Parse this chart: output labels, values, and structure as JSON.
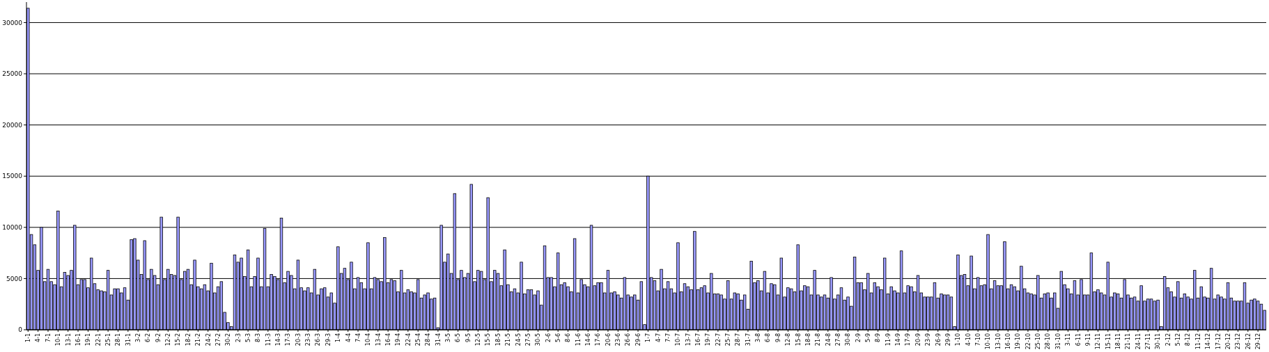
{
  "chart_data": {
    "type": "bar",
    "categories": [
      "1-1",
      null,
      null,
      "4-1",
      null,
      null,
      "7-1",
      null,
      null,
      "10-1",
      null,
      null,
      "13-1",
      null,
      null,
      "16-1",
      null,
      null,
      "19-1",
      null,
      null,
      "22-1",
      null,
      null,
      "25-1",
      null,
      null,
      "28-1",
      null,
      null,
      "31-1",
      null,
      null,
      "3-2",
      null,
      null,
      "6-2",
      null,
      null,
      "9-2",
      null,
      null,
      "12-2",
      null,
      null,
      "15-2",
      null,
      null,
      "18-2",
      null,
      null,
      "21-2",
      null,
      null,
      "24-2",
      null,
      null,
      "27-2",
      null,
      null,
      "30-2",
      null,
      null,
      "2-3",
      null,
      null,
      "5-3",
      null,
      null,
      "8-3",
      null,
      null,
      "11-3",
      null,
      null,
      "14-3",
      null,
      null,
      "17-3",
      null,
      null,
      "20-3",
      null,
      null,
      "23-3",
      null,
      null,
      "26-3",
      null,
      null,
      "29-3",
      null,
      null,
      "1-4",
      null,
      null,
      "4-4",
      null,
      null,
      "7-4",
      null,
      null,
      "10-4",
      null,
      null,
      "13-4",
      null,
      null,
      "16-4",
      null,
      null,
      "19-4",
      null,
      null,
      "22-4",
      null,
      null,
      "25-4",
      null,
      null,
      "28-4",
      null,
      null,
      "31-4",
      null,
      null,
      "3-5",
      null,
      null,
      "6-5",
      null,
      null,
      "9-5",
      null,
      null,
      "12-5",
      null,
      null,
      "15-5",
      null,
      null,
      "18-5",
      null,
      null,
      "21-5",
      null,
      null,
      "24-5",
      null,
      null,
      "27-5",
      null,
      null,
      "30-5",
      null,
      null,
      "2-6",
      null,
      null,
      "5-6",
      null,
      null,
      "8-6",
      null,
      null,
      "11-6",
      null,
      null,
      "14-6",
      null,
      null,
      "17-6",
      null,
      null,
      "20-6",
      null,
      null,
      "23-6",
      null,
      null,
      "26-6",
      null,
      null,
      "29-6",
      null,
      null,
      "1-7",
      null,
      null,
      "4-7",
      null,
      null,
      "7-7",
      null,
      null,
      "10-7",
      null,
      null,
      "13-7",
      null,
      null,
      "16-7",
      null,
      null,
      "19-7",
      null,
      null,
      "22-7",
      null,
      null,
      "25-7",
      null,
      null,
      "28-7",
      null,
      null,
      "31-7",
      null,
      null,
      "3-8",
      null,
      null,
      "6-8",
      null,
      null,
      "9-8",
      null,
      null,
      "12-8",
      null,
      null,
      "15-8",
      null,
      null,
      "18-8",
      null,
      null,
      "21-8",
      null,
      null,
      "24-8",
      null,
      null,
      "27-8",
      null,
      null,
      "30-8",
      null,
      null,
      "2-9",
      null,
      null,
      "5-9",
      null,
      null,
      "8-9",
      null,
      null,
      "11-9",
      null,
      null,
      "14-9",
      null,
      null,
      "17-9",
      null,
      null,
      "20-9",
      null,
      null,
      "23-9",
      null,
      null,
      "26-9",
      null,
      null,
      "29-9",
      null,
      null,
      "1-10",
      null,
      null,
      "4-10",
      null,
      null,
      "7-10",
      null,
      null,
      "10-10",
      null,
      null,
      "13-10",
      null,
      null,
      "16-10",
      null,
      null,
      "19-10",
      null,
      null,
      "22-10",
      null,
      null,
      "25-10",
      null,
      null,
      "28-10",
      null,
      null,
      "31-10",
      null,
      null,
      "3-11",
      null,
      null,
      "6-11",
      null,
      null,
      "9-11",
      null,
      null,
      "12-11",
      null,
      null,
      "15-11",
      null,
      null,
      "18-11",
      null,
      null,
      "21-11",
      null,
      null,
      "24-11",
      null,
      null,
      "27-11",
      null,
      null,
      "30-11",
      null,
      null,
      "2-12",
      null,
      null,
      "5-12",
      null,
      null,
      "8-12",
      null,
      null,
      "11-12",
      null,
      null,
      "14-12",
      null,
      null,
      "17-12",
      null,
      null,
      "20-12",
      null,
      null,
      "23-12",
      null,
      null,
      "26-12",
      null,
      null,
      "29-12",
      null,
      null
    ],
    "values": [
      31400,
      9300,
      8300,
      5800,
      10000,
      4700,
      5900,
      4700,
      4400,
      11600,
      4200,
      5600,
      5300,
      5800,
      10200,
      4400,
      4900,
      4900,
      4100,
      7000,
      4500,
      3900,
      3800,
      3700,
      5800,
      3400,
      4000,
      4000,
      3600,
      4100,
      2900,
      8800,
      8900,
      6800,
      5400,
      8700,
      4900,
      5900,
      5300,
      4400,
      11000,
      4900,
      5900,
      5400,
      5300,
      11000,
      4900,
      5700,
      5900,
      4400,
      6800,
      4200,
      4000,
      4400,
      3800,
      6500,
      3600,
      4200,
      4700,
      1700,
      700,
      300,
      7300,
      6600,
      7000,
      5200,
      7800,
      4200,
      5200,
      7000,
      4200,
      9900,
      4200,
      5400,
      5200,
      4900,
      10900,
      4600,
      5700,
      5300,
      4000,
      6800,
      4100,
      3800,
      4100,
      3600,
      5900,
      3400,
      4000,
      4100,
      3200,
      3600,
      2600,
      8100,
      5500,
      6000,
      4900,
      6600,
      4000,
      5100,
      4600,
      4000,
      8500,
      4000,
      5100,
      4900,
      4700,
      9000,
      4600,
      4900,
      4800,
      3700,
      5800,
      3600,
      3900,
      3700,
      3600,
      4900,
      3100,
      3400,
      3600,
      3000,
      3100,
      200,
      10200,
      6600,
      7400,
      5500,
      13300,
      4900,
      5800,
      5100,
      5500,
      14200,
      4700,
      5800,
      5700,
      4900,
      12900,
      4700,
      5800,
      5500,
      4300,
      7800,
      4400,
      3700,
      4000,
      3600,
      6600,
      3500,
      3900,
      3900,
      3400,
      3800,
      2400,
      8200,
      5100,
      5100,
      4200,
      7500,
      4400,
      4600,
      4200,
      3700,
      8900,
      3600,
      4900,
      4400,
      4200,
      10200,
      4300,
      4600,
      4600,
      3600,
      5800,
      3600,
      3700,
      3400,
      3100,
      5100,
      3400,
      3200,
      3400,
      2900,
      4700,
      500,
      15000,
      5100,
      4800,
      3800,
      5900,
      4000,
      4700,
      4000,
      3600,
      8500,
      3700,
      4500,
      4200,
      3900,
      9600,
      3900,
      4100,
      4300,
      3600,
      5500,
      3500,
      3500,
      3400,
      3000,
      4800,
      3000,
      3600,
      3500,
      2900,
      3400,
      2000,
      6700,
      4600,
      4800,
      3800,
      5700,
      3600,
      4500,
      4400,
      3400,
      7000,
      3200,
      4100,
      4000,
      3700,
      8300,
      3800,
      4300,
      4200,
      3400,
      5800,
      3400,
      3200,
      3400,
      3100,
      5100,
      3000,
      3400,
      4100,
      2900,
      3200,
      2300,
      7100,
      4600,
      4600,
      3900,
      5500,
      3600,
      4600,
      4200,
      3900,
      7000,
      3500,
      4200,
      3800,
      3600,
      7700,
      3600,
      4300,
      4200,
      3700,
      5300,
      3600,
      3200,
      3200,
      3200,
      4600,
      3100,
      3500,
      3400,
      3400,
      3200,
      300,
      7300,
      5300,
      5400,
      4300,
      7200,
      4000,
      5100,
      4300,
      4400,
      9300,
      4000,
      4800,
      4300,
      4300,
      8600,
      4000,
      4400,
      4200,
      3800,
      6200,
      4000,
      3600,
      3500,
      3400,
      5300,
      3100,
      3500,
      3600,
      3100,
      3600,
      2100,
      5700,
      4400,
      4000,
      3500,
      4800,
      3400,
      4900,
      3400,
      3400,
      7500,
      3700,
      3900,
      3600,
      3400,
      6600,
      3200,
      3600,
      3500,
      3100,
      4900,
      3400,
      3100,
      3200,
      2800,
      4300,
      2800,
      3000,
      3000,
      2800,
      2900,
      300,
      5200,
      4100,
      3700,
      3200,
      4700,
      3100,
      3500,
      3200,
      3000,
      5800,
      3100,
      4200,
      3200,
      3100,
      6000,
      3000,
      3400,
      3200,
      3000,
      4600,
      3100,
      2800,
      2800,
      2800,
      4600,
      2600,
      2900,
      3000,
      2800,
      2500,
      1900
    ],
    "color": "#9999ff",
    "ylim": [
      0,
      32000
    ],
    "yticks": [
      0,
      5000,
      10000,
      15000,
      20000,
      25000,
      30000
    ],
    "grid": "y"
  }
}
